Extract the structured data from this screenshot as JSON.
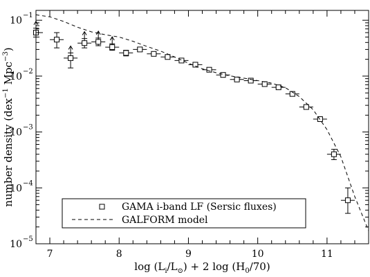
{
  "chart_data": {
    "type": "scatter",
    "x_axis": {
      "range": [
        6.8,
        11.6
      ],
      "ticks": [
        7,
        8,
        9,
        10,
        11
      ],
      "tick_labels": [
        "7",
        "8",
        "9",
        "10",
        "11"
      ],
      "label": {
        "p1": "log (L",
        "sub1": "i",
        "p2": "/L",
        "sub2": "⊙",
        "p3": ") + 2 log (H",
        "sub3": "0",
        "p4": "/70)"
      }
    },
    "y_axis": {
      "scale": "log",
      "range": [
        1e-05,
        0.15
      ],
      "ticks": [
        1e-05,
        0.0001,
        0.001,
        0.01,
        0.1
      ],
      "tick_labels": [
        {
          "base": "10",
          "exp": "−5"
        },
        {
          "base": "10",
          "exp": "−4"
        },
        {
          "base": "10",
          "exp": "−3"
        },
        {
          "base": "10",
          "exp": "−2"
        },
        {
          "base": "10",
          "exp": "−1"
        }
      ],
      "label": {
        "p1": "number density (dex",
        "sup1": "−1",
        "p2": " Mpc",
        "sup2": "−3",
        "p3": ")"
      }
    },
    "series": [
      {
        "name": "GAMA i-band LF (Sersic fluxes)",
        "marker": "open-square",
        "color": "#000000",
        "points": [
          {
            "x": 6.8,
            "y": 0.06,
            "xerr": 0.1,
            "ylo": 0.05,
            "yhi": 0.072,
            "lower_limit": true
          },
          {
            "x": 7.1,
            "y": 0.045,
            "xerr": 0.1,
            "ylo": 0.032,
            "yhi": 0.06,
            "lower_limit": false
          },
          {
            "x": 7.3,
            "y": 0.021,
            "xerr": 0.1,
            "ylo": 0.014,
            "yhi": 0.026,
            "lower_limit": true
          },
          {
            "x": 7.5,
            "y": 0.039,
            "xerr": 0.1,
            "ylo": 0.032,
            "yhi": 0.047,
            "lower_limit": true
          },
          {
            "x": 7.7,
            "y": 0.041,
            "xerr": 0.1,
            "ylo": 0.035,
            "yhi": 0.048,
            "lower_limit": true
          },
          {
            "x": 7.9,
            "y": 0.033,
            "xerr": 0.1,
            "ylo": 0.029,
            "yhi": 0.038,
            "lower_limit": true
          },
          {
            "x": 8.1,
            "y": 0.026,
            "xerr": 0.1,
            "ylo": 0.023,
            "yhi": 0.029,
            "lower_limit": false
          },
          {
            "x": 8.3,
            "y": 0.03,
            "xerr": 0.1,
            "ylo": 0.028,
            "yhi": 0.032,
            "lower_limit": false
          },
          {
            "x": 8.5,
            "y": 0.025,
            "xerr": 0.1,
            "ylo": 0.024,
            "yhi": 0.026,
            "lower_limit": false
          },
          {
            "x": 8.7,
            "y": 0.022,
            "xerr": 0.1,
            "ylo": 0.021,
            "yhi": 0.023,
            "lower_limit": false
          },
          {
            "x": 8.9,
            "y": 0.019,
            "xerr": 0.1,
            "ylo": 0.018,
            "yhi": 0.02,
            "lower_limit": false
          },
          {
            "x": 9.1,
            "y": 0.016,
            "xerr": 0.1,
            "ylo": 0.015,
            "yhi": 0.017,
            "lower_limit": false
          },
          {
            "x": 9.3,
            "y": 0.013,
            "xerr": 0.1,
            "ylo": 0.0125,
            "yhi": 0.0135,
            "lower_limit": false
          },
          {
            "x": 9.5,
            "y": 0.0105,
            "xerr": 0.1,
            "ylo": 0.01,
            "yhi": 0.011,
            "lower_limit": false
          },
          {
            "x": 9.7,
            "y": 0.0087,
            "xerr": 0.1,
            "ylo": 0.0084,
            "yhi": 0.009,
            "lower_limit": false
          },
          {
            "x": 9.9,
            "y": 0.0083,
            "xerr": 0.1,
            "ylo": 0.008,
            "yhi": 0.0086,
            "lower_limit": false
          },
          {
            "x": 10.1,
            "y": 0.0072,
            "xerr": 0.1,
            "ylo": 0.007,
            "yhi": 0.0074,
            "lower_limit": false
          },
          {
            "x": 10.3,
            "y": 0.0063,
            "xerr": 0.1,
            "ylo": 0.0061,
            "yhi": 0.0065,
            "lower_limit": false
          },
          {
            "x": 10.5,
            "y": 0.0048,
            "xerr": 0.1,
            "ylo": 0.0046,
            "yhi": 0.005,
            "lower_limit": false
          },
          {
            "x": 10.7,
            "y": 0.0028,
            "xerr": 0.1,
            "ylo": 0.0027,
            "yhi": 0.0029,
            "lower_limit": false
          },
          {
            "x": 10.9,
            "y": 0.0017,
            "xerr": 0.1,
            "ylo": 0.0016,
            "yhi": 0.0018,
            "lower_limit": false
          },
          {
            "x": 11.1,
            "y": 0.0004,
            "xerr": 0.1,
            "ylo": 0.00032,
            "yhi": 0.00049,
            "lower_limit": false
          },
          {
            "x": 11.3,
            "y": 6e-05,
            "xerr": 0.1,
            "ylo": 3.5e-05,
            "yhi": 0.0001,
            "lower_limit": false
          }
        ]
      },
      {
        "name": "GALFORM model",
        "style": "dashed-line",
        "color": "#000000",
        "x": [
          6.8,
          7.0,
          7.2,
          7.4,
          7.6,
          7.8,
          8.0,
          8.2,
          8.4,
          8.6,
          8.8,
          9.0,
          9.2,
          9.4,
          9.6,
          9.8,
          10.0,
          10.2,
          10.4,
          10.6,
          10.8,
          11.0,
          11.2,
          11.4,
          11.6
        ],
        "y": [
          0.125,
          0.115,
          0.095,
          0.075,
          0.062,
          0.055,
          0.05,
          0.042,
          0.034,
          0.028,
          0.022,
          0.017,
          0.0135,
          0.0115,
          0.0101,
          0.0092,
          0.0083,
          0.0075,
          0.0062,
          0.0043,
          0.0025,
          0.0011,
          0.00036,
          7e-05,
          1.7e-05
        ]
      }
    ],
    "legend": {
      "position": "bottom-left",
      "entries": [
        {
          "label": "GAMA i-band LF (Sersic fluxes)",
          "symbol": "open-square"
        },
        {
          "label": "GALFORM model",
          "symbol": "dashed-line"
        }
      ]
    },
    "grid": false
  }
}
